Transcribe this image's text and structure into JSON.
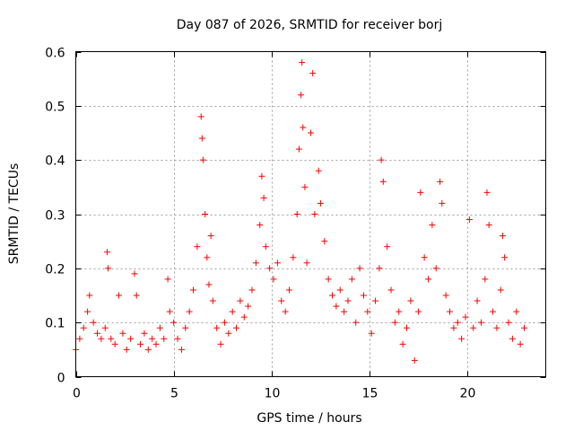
{
  "chart_data": {
    "type": "scatter",
    "title": "Day 087 of 2026, SRMTID for receiver borj",
    "xlabel": "GPS time / hours",
    "ylabel": "SRMTID / TECUs",
    "xlim": [
      0,
      24
    ],
    "ylim": [
      0,
      0.6
    ],
    "xticks": [
      0,
      5,
      10,
      15,
      20
    ],
    "yticks": [
      0,
      0.1,
      0.2,
      0.3,
      0.4,
      0.5,
      0.6
    ],
    "xtick_labels": [
      "0",
      "5",
      "10",
      "15",
      "20"
    ],
    "ytick_labels": [
      "0",
      "0.1",
      "0.2",
      "0.3",
      "0.4",
      "0.5",
      "0.6"
    ],
    "grid": true,
    "marker": "plus",
    "color": "#ff0000",
    "x_data_range": [
      0,
      22.9
    ],
    "points": [
      [
        0.0,
        0.05
      ],
      [
        0.2,
        0.07
      ],
      [
        0.4,
        0.09
      ],
      [
        0.6,
        0.12
      ],
      [
        0.7,
        0.15
      ],
      [
        0.9,
        0.1
      ],
      [
        1.1,
        0.08
      ],
      [
        1.3,
        0.07
      ],
      [
        1.5,
        0.09
      ],
      [
        1.6,
        0.23
      ],
      [
        1.65,
        0.2
      ],
      [
        1.8,
        0.07
      ],
      [
        2.0,
        0.06
      ],
      [
        2.2,
        0.15
      ],
      [
        2.4,
        0.08
      ],
      [
        2.6,
        0.05
      ],
      [
        2.8,
        0.07
      ],
      [
        3.0,
        0.19
      ],
      [
        3.1,
        0.15
      ],
      [
        3.3,
        0.06
      ],
      [
        3.5,
        0.08
      ],
      [
        3.7,
        0.05
      ],
      [
        3.9,
        0.07
      ],
      [
        4.1,
        0.06
      ],
      [
        4.3,
        0.09
      ],
      [
        4.5,
        0.07
      ],
      [
        4.7,
        0.18
      ],
      [
        4.8,
        0.12
      ],
      [
        5.0,
        0.1
      ],
      [
        5.2,
        0.07
      ],
      [
        5.4,
        0.05
      ],
      [
        5.6,
        0.09
      ],
      [
        5.8,
        0.12
      ],
      [
        6.0,
        0.16
      ],
      [
        6.2,
        0.24
      ],
      [
        6.4,
        0.48
      ],
      [
        6.45,
        0.44
      ],
      [
        6.5,
        0.4
      ],
      [
        6.6,
        0.3
      ],
      [
        6.7,
        0.22
      ],
      [
        6.8,
        0.17
      ],
      [
        6.9,
        0.26
      ],
      [
        7.0,
        0.14
      ],
      [
        7.2,
        0.09
      ],
      [
        7.4,
        0.06
      ],
      [
        7.6,
        0.1
      ],
      [
        7.8,
        0.08
      ],
      [
        8.0,
        0.12
      ],
      [
        8.2,
        0.09
      ],
      [
        8.4,
        0.14
      ],
      [
        8.6,
        0.11
      ],
      [
        8.8,
        0.13
      ],
      [
        9.0,
        0.16
      ],
      [
        9.2,
        0.21
      ],
      [
        9.4,
        0.28
      ],
      [
        9.5,
        0.37
      ],
      [
        9.6,
        0.33
      ],
      [
        9.7,
        0.24
      ],
      [
        9.9,
        0.2
      ],
      [
        10.1,
        0.18
      ],
      [
        10.3,
        0.21
      ],
      [
        10.5,
        0.14
      ],
      [
        10.7,
        0.12
      ],
      [
        10.9,
        0.16
      ],
      [
        11.1,
        0.22
      ],
      [
        11.3,
        0.3
      ],
      [
        11.4,
        0.42
      ],
      [
        11.5,
        0.52
      ],
      [
        11.55,
        0.58
      ],
      [
        11.6,
        0.46
      ],
      [
        11.7,
        0.35
      ],
      [
        11.8,
        0.21
      ],
      [
        12.0,
        0.45
      ],
      [
        12.1,
        0.56
      ],
      [
        12.2,
        0.3
      ],
      [
        12.4,
        0.38
      ],
      [
        12.5,
        0.32
      ],
      [
        12.7,
        0.25
      ],
      [
        12.9,
        0.18
      ],
      [
        13.1,
        0.15
      ],
      [
        13.3,
        0.13
      ],
      [
        13.5,
        0.16
      ],
      [
        13.7,
        0.12
      ],
      [
        13.9,
        0.14
      ],
      [
        14.1,
        0.18
      ],
      [
        14.3,
        0.1
      ],
      [
        14.5,
        0.2
      ],
      [
        14.7,
        0.15
      ],
      [
        14.9,
        0.12
      ],
      [
        15.1,
        0.08
      ],
      [
        15.3,
        0.14
      ],
      [
        15.5,
        0.2
      ],
      [
        15.6,
        0.4
      ],
      [
        15.7,
        0.36
      ],
      [
        15.9,
        0.24
      ],
      [
        16.1,
        0.16
      ],
      [
        16.3,
        0.1
      ],
      [
        16.5,
        0.12
      ],
      [
        16.7,
        0.06
      ],
      [
        16.9,
        0.09
      ],
      [
        17.1,
        0.14
      ],
      [
        17.3,
        0.03
      ],
      [
        17.5,
        0.12
      ],
      [
        17.6,
        0.34
      ],
      [
        17.8,
        0.22
      ],
      [
        18.0,
        0.18
      ],
      [
        18.2,
        0.28
      ],
      [
        18.4,
        0.2
      ],
      [
        18.6,
        0.36
      ],
      [
        18.7,
        0.32
      ],
      [
        18.9,
        0.15
      ],
      [
        19.1,
        0.12
      ],
      [
        19.3,
        0.09
      ],
      [
        19.5,
        0.1
      ],
      [
        19.7,
        0.07
      ],
      [
        19.9,
        0.11
      ],
      [
        20.1,
        0.29
      ],
      [
        20.3,
        0.09
      ],
      [
        20.5,
        0.14
      ],
      [
        20.7,
        0.1
      ],
      [
        20.9,
        0.18
      ],
      [
        21.0,
        0.34
      ],
      [
        21.1,
        0.28
      ],
      [
        21.3,
        0.12
      ],
      [
        21.5,
        0.09
      ],
      [
        21.7,
        0.16
      ],
      [
        21.8,
        0.26
      ],
      [
        21.9,
        0.22
      ],
      [
        22.1,
        0.1
      ],
      [
        22.3,
        0.07
      ],
      [
        22.5,
        0.12
      ],
      [
        22.7,
        0.06
      ],
      [
        22.9,
        0.09
      ]
    ]
  }
}
